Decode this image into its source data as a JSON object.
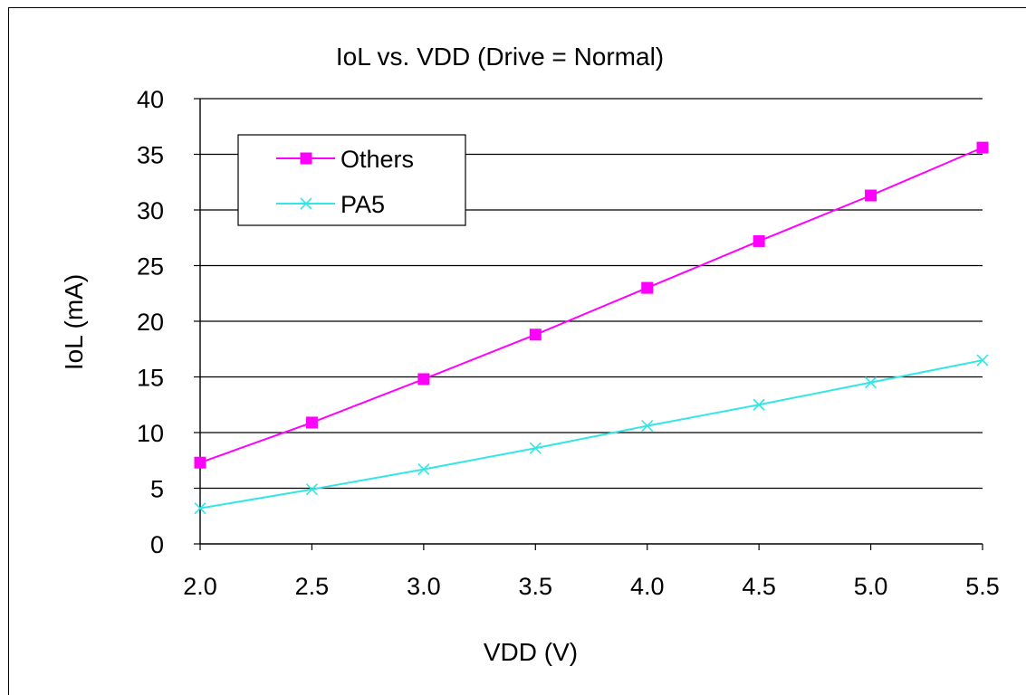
{
  "chart_data": {
    "type": "line",
    "title": "IoL vs. VDD (Drive = Normal)",
    "xlabel": "VDD (V)",
    "ylabel": "IoL (mA)",
    "x": [
      2.0,
      2.5,
      3.0,
      3.5,
      4.0,
      4.5,
      5.0,
      5.5
    ],
    "x_tick_labels": [
      "2.0",
      "2.5",
      "3.0",
      "3.5",
      "4.0",
      "4.5",
      "5.0",
      "5.5"
    ],
    "y_tick_labels": [
      "0",
      "5",
      "10",
      "15",
      "20",
      "25",
      "30",
      "35",
      "40"
    ],
    "xlim": [
      2.0,
      5.5
    ],
    "ylim": [
      0,
      40
    ],
    "grid": "horizontal",
    "legend_position": "top-left",
    "series": [
      {
        "name": "Others",
        "values": [
          7.3,
          10.9,
          14.8,
          18.8,
          23.0,
          27.2,
          31.3,
          35.6
        ],
        "color": "#ff00ff",
        "marker": "square"
      },
      {
        "name": "PA5",
        "values": [
          3.2,
          4.9,
          6.7,
          8.6,
          10.6,
          12.5,
          14.5,
          16.5
        ],
        "color": "#33e6e6",
        "marker": "x"
      }
    ]
  }
}
